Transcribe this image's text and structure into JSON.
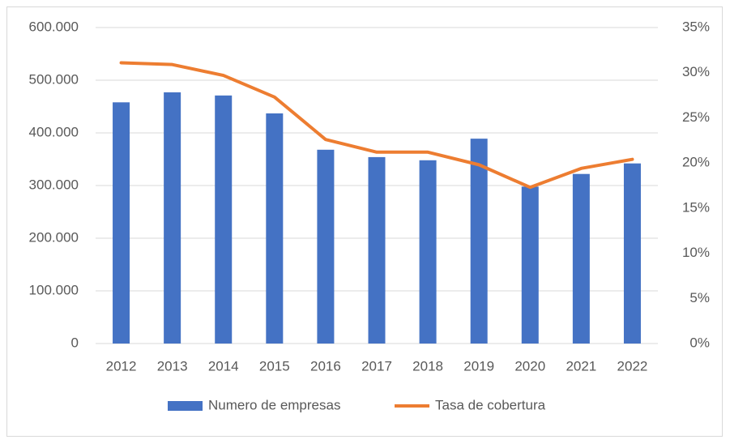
{
  "chart_data": {
    "type": "bar",
    "categories": [
      "2012",
      "2013",
      "2014",
      "2015",
      "2016",
      "2017",
      "2018",
      "2019",
      "2020",
      "2021",
      "2022"
    ],
    "series": [
      {
        "name": "Numero de empresas",
        "type": "bar",
        "color": "#4472c4",
        "values": [
          458000,
          477000,
          471000,
          437000,
          368000,
          354000,
          348000,
          389000,
          298000,
          322000,
          342000
        ]
      },
      {
        "name": "Tasa de cobertura",
        "type": "line",
        "axis": "y2",
        "color": "#ed7d31",
        "values": [
          31.1,
          30.9,
          29.7,
          27.3,
          22.6,
          21.2,
          21.2,
          19.8,
          17.3,
          19.4,
          20.4
        ]
      }
    ],
    "ylim": [
      0,
      600000
    ],
    "yticks": [
      0,
      {
        "value": 100000,
        "label": "100.000"
      },
      {
        "value": 200000,
        "label": "200.000"
      },
      {
        "value": 300000,
        "label": "300.000"
      },
      {
        "value": 400000,
        "label": "400.000"
      },
      {
        "value": 500000,
        "label": "500.000"
      },
      {
        "value": 600000,
        "label": "600.000"
      }
    ],
    "y2lim": [
      0,
      35
    ],
    "y2ticks": [
      {
        "value": 0,
        "label": "0%"
      },
      {
        "value": 5,
        "label": "5%"
      },
      {
        "value": 10,
        "label": "10%"
      },
      {
        "value": 15,
        "label": "15%"
      },
      {
        "value": 20,
        "label": "20%"
      },
      {
        "value": 25,
        "label": "25%"
      },
      {
        "value": 30,
        "label": "30%"
      },
      {
        "value": 35,
        "label": "35%"
      }
    ],
    "grid": true,
    "legend": "bottom"
  }
}
